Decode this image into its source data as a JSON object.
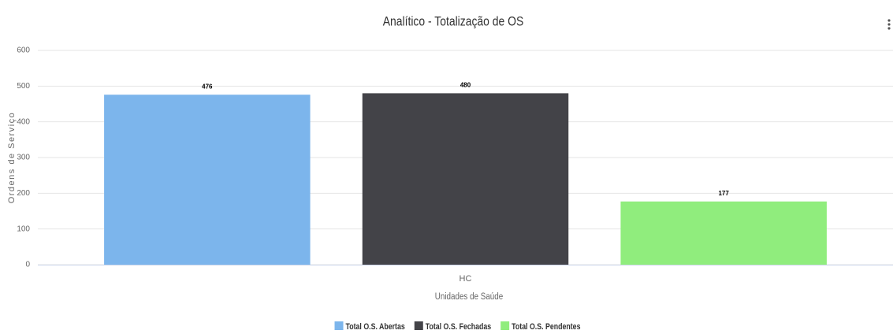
{
  "chart_data": {
    "type": "bar",
    "title": "Analítico - Totalização de OS",
    "categories": [
      "HC"
    ],
    "series": [
      {
        "name": "Total O.S. Abertas",
        "color": "#7cb5ec",
        "values": [
          476
        ]
      },
      {
        "name": "Total O.S. Fechadas",
        "color": "#434348",
        "values": [
          480
        ]
      },
      {
        "name": "Total O.S. Pendentes",
        "color": "#90ed7d",
        "values": [
          177
        ]
      }
    ],
    "x_label": "Unidades de Saúde",
    "y_label": "Ordens de Serviço",
    "ylim": [
      0,
      600
    ],
    "yticks": [
      0,
      100,
      200,
      300,
      400,
      500,
      600
    ],
    "grid": true,
    "legend": "bottom"
  }
}
